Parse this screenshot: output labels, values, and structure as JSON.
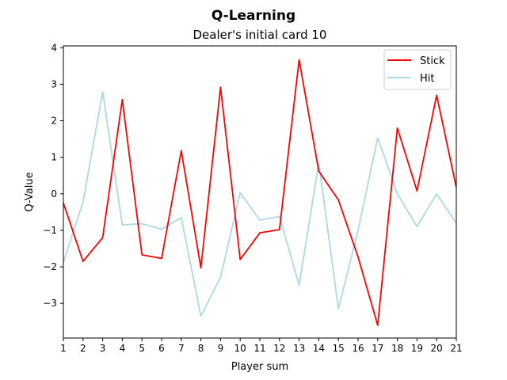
{
  "chart_data": {
    "type": "line",
    "suptitle": "Q-Learning",
    "title": "Dealer's initial card 10",
    "xlabel": "Player sum",
    "ylabel": "Q-Value",
    "xlim": [
      1,
      21
    ],
    "ylim": [
      -3.95,
      4.05
    ],
    "xticks": [
      1,
      2,
      3,
      4,
      5,
      6,
      7,
      8,
      9,
      10,
      11,
      12,
      13,
      14,
      15,
      16,
      17,
      18,
      19,
      20,
      21
    ],
    "yticks": [
      -3,
      -2,
      -1,
      0,
      1,
      2,
      3,
      4
    ],
    "ytick_labels": [
      "−3",
      "−2",
      "−1",
      "0",
      "1",
      "2",
      "3",
      "4"
    ],
    "grid": false,
    "legend_position": "top-right",
    "x": [
      1,
      2,
      3,
      4,
      5,
      6,
      7,
      8,
      9,
      10,
      11,
      12,
      13,
      14,
      15,
      16,
      17,
      18,
      19,
      20,
      21
    ],
    "series": [
      {
        "name": "Stick",
        "color": "#ff0000",
        "values": [
          -0.25,
          -1.85,
          -1.2,
          2.58,
          -1.67,
          -1.77,
          1.18,
          -2.03,
          2.92,
          -1.8,
          -1.07,
          -0.98,
          3.67,
          0.62,
          -0.17,
          -1.73,
          -3.6,
          1.8,
          0.08,
          2.7,
          0.18
        ]
      },
      {
        "name": "Hit",
        "color": "#add8e6",
        "values": [
          -1.88,
          -0.23,
          2.79,
          -0.85,
          -0.82,
          -0.97,
          -0.65,
          -3.35,
          -2.28,
          0.03,
          -0.72,
          -0.62,
          -2.5,
          0.85,
          -3.15,
          -1.0,
          1.53,
          0.0,
          -0.9,
          0.0,
          -0.8
        ]
      }
    ]
  }
}
